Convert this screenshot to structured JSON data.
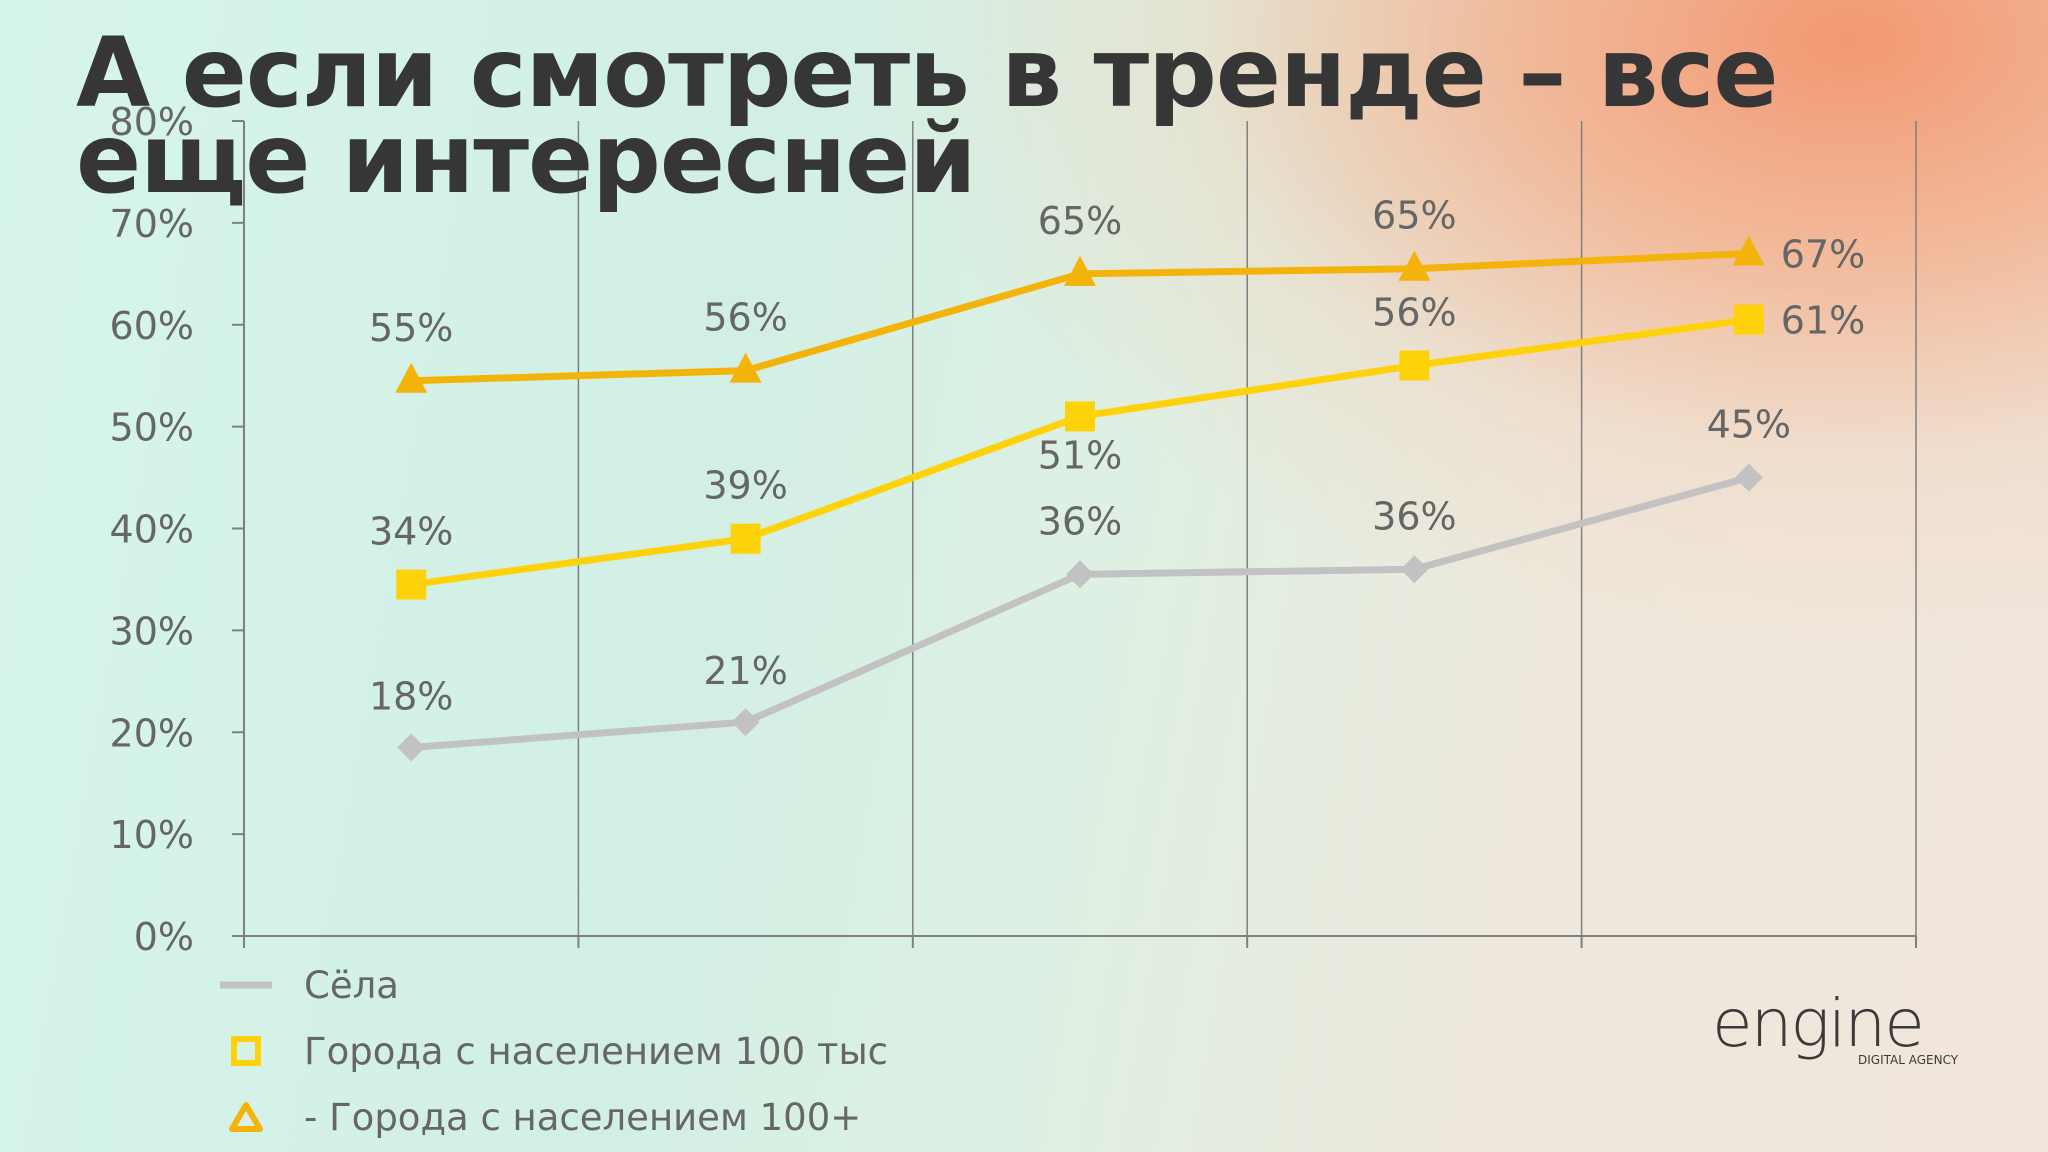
{
  "slide": {
    "title": "А если смотреть в тренде – все еще интересней",
    "logo": {
      "word": "engine",
      "tagline": "DIGITAL AGENCY"
    }
  },
  "colors": {
    "villages": "#c2c2c2",
    "cities_100k": "#fdd20a",
    "cities_100k_plus": "#f3b30b",
    "axis": "#7f7f7f",
    "grid": "#7f7f7f",
    "text": "#666666",
    "title": "#363636"
  },
  "chart_data": {
    "type": "line",
    "title": "",
    "xlabel": "",
    "ylabel": "",
    "categories": [
      "",
      "",
      "",
      "",
      ""
    ],
    "ylim": [
      0,
      80
    ],
    "yticks": [
      0,
      10,
      20,
      30,
      40,
      50,
      60,
      70,
      80
    ],
    "ytick_labels": [
      "0%",
      "10%",
      "20%",
      "30%",
      "40%",
      "50%",
      "60%",
      "70%",
      "80%"
    ],
    "grid": "vertical",
    "legend_position": "bottom-left",
    "series": [
      {
        "name": "Сёла",
        "marker": "diamond",
        "color_key": "villages",
        "values": [
          18.5,
          21,
          35.5,
          36,
          45
        ],
        "labels": [
          "18%",
          "21%",
          "36%",
          "36%",
          "45%"
        ]
      },
      {
        "name": "Города с населением 100 тыс",
        "marker": "square",
        "color_key": "cities_100k",
        "values": [
          34.5,
          39,
          51,
          56,
          60.5
        ],
        "labels": [
          "34%",
          "39%",
          "51%",
          "56%",
          "61%"
        ]
      },
      {
        "name": "-  Города с населением 100+",
        "marker": "triangle",
        "color_key": "cities_100k_plus",
        "values": [
          54.5,
          55.5,
          65,
          65.5,
          67
        ],
        "labels": [
          "55%",
          "56%",
          "65%",
          "65%",
          "67%"
        ]
      }
    ]
  }
}
